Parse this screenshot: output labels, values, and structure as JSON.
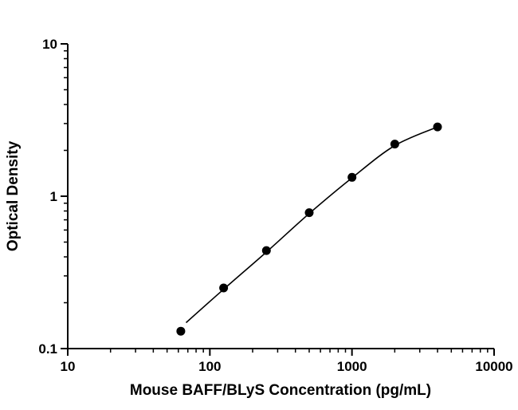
{
  "chart_data": {
    "type": "scatter",
    "title": "",
    "xlabel": "Mouse BAFF/BLyS Concentration (pg/mL)",
    "ylabel": "Optical Density",
    "x_scale": "log",
    "y_scale": "log",
    "xlim": [
      10,
      10000
    ],
    "ylim": [
      0.1,
      10
    ],
    "x_ticks": [
      10,
      100,
      1000,
      10000
    ],
    "x_tick_labels": [
      "10",
      "100",
      "1000",
      "10000"
    ],
    "y_ticks": [
      0.1,
      1,
      10
    ],
    "y_tick_labels": [
      "0.1",
      "1",
      "10"
    ],
    "grid": false,
    "legend": null,
    "colors": {
      "background": "#ffffff",
      "axis": "#000000",
      "marker": "#000000",
      "curve": "#000000",
      "text": "#000000"
    },
    "series": [
      {
        "name": "standard-curve-points",
        "marker": "circle",
        "points": [
          {
            "x": 62.5,
            "y": 0.13
          },
          {
            "x": 125,
            "y": 0.25
          },
          {
            "x": 250,
            "y": 0.44
          },
          {
            "x": 500,
            "y": 0.78
          },
          {
            "x": 1000,
            "y": 1.33
          },
          {
            "x": 2000,
            "y": 2.2
          },
          {
            "x": 4000,
            "y": 2.85
          }
        ]
      }
    ],
    "fit_curve": {
      "name": "four-parameter-logistic-fit",
      "points": [
        {
          "x": 68,
          "y": 0.148
        },
        {
          "x": 125,
          "y": 0.245
        },
        {
          "x": 250,
          "y": 0.43
        },
        {
          "x": 500,
          "y": 0.77
        },
        {
          "x": 1000,
          "y": 1.32
        },
        {
          "x": 2000,
          "y": 2.15
        },
        {
          "x": 4000,
          "y": 2.85
        }
      ]
    }
  }
}
